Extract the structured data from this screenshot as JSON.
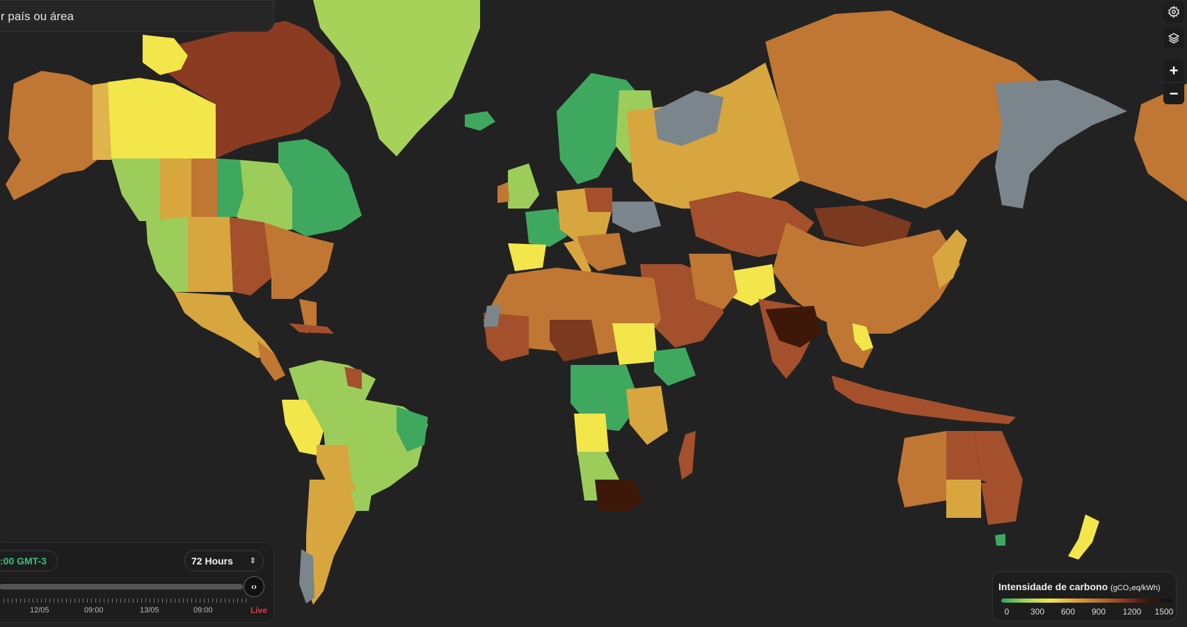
{
  "search": {
    "placeholder_text": "r país ou área"
  },
  "map_controls": {
    "settings": "gear-icon",
    "layers": "layers-icon",
    "zoom_in_label": "+",
    "zoom_out_label": "−"
  },
  "timeline": {
    "timezone": ":00 GMT-3",
    "range": "72 Hours",
    "tick_labels": [
      "12/05",
      "09:00",
      "13/05",
      "09:00"
    ],
    "live_label": "Live",
    "handle_glyph": "‹›"
  },
  "legend": {
    "title": "Intensidade de carbono",
    "unit": "(gCO₂eq/kWh)",
    "scale": [
      "0",
      "300",
      "600",
      "900",
      "1200",
      "1500"
    ],
    "colors": [
      "#2aa55f",
      "#a7d25a",
      "#f4e64a",
      "#d9a53c",
      "#b8712f",
      "#8a3b22",
      "#3a1608",
      "#111111"
    ]
  },
  "map_colors": {
    "background": "#222222",
    "no_data": "#7b858c",
    "low_green": "#3fa85f",
    "light_green": "#9ccd5a",
    "yellow": "#f3e64a",
    "ochre": "#d8a63f",
    "orange_brown": "#c07733",
    "brown": "#a4502c",
    "dark_brown": "#7b3920",
    "very_dark": "#3d1809"
  }
}
